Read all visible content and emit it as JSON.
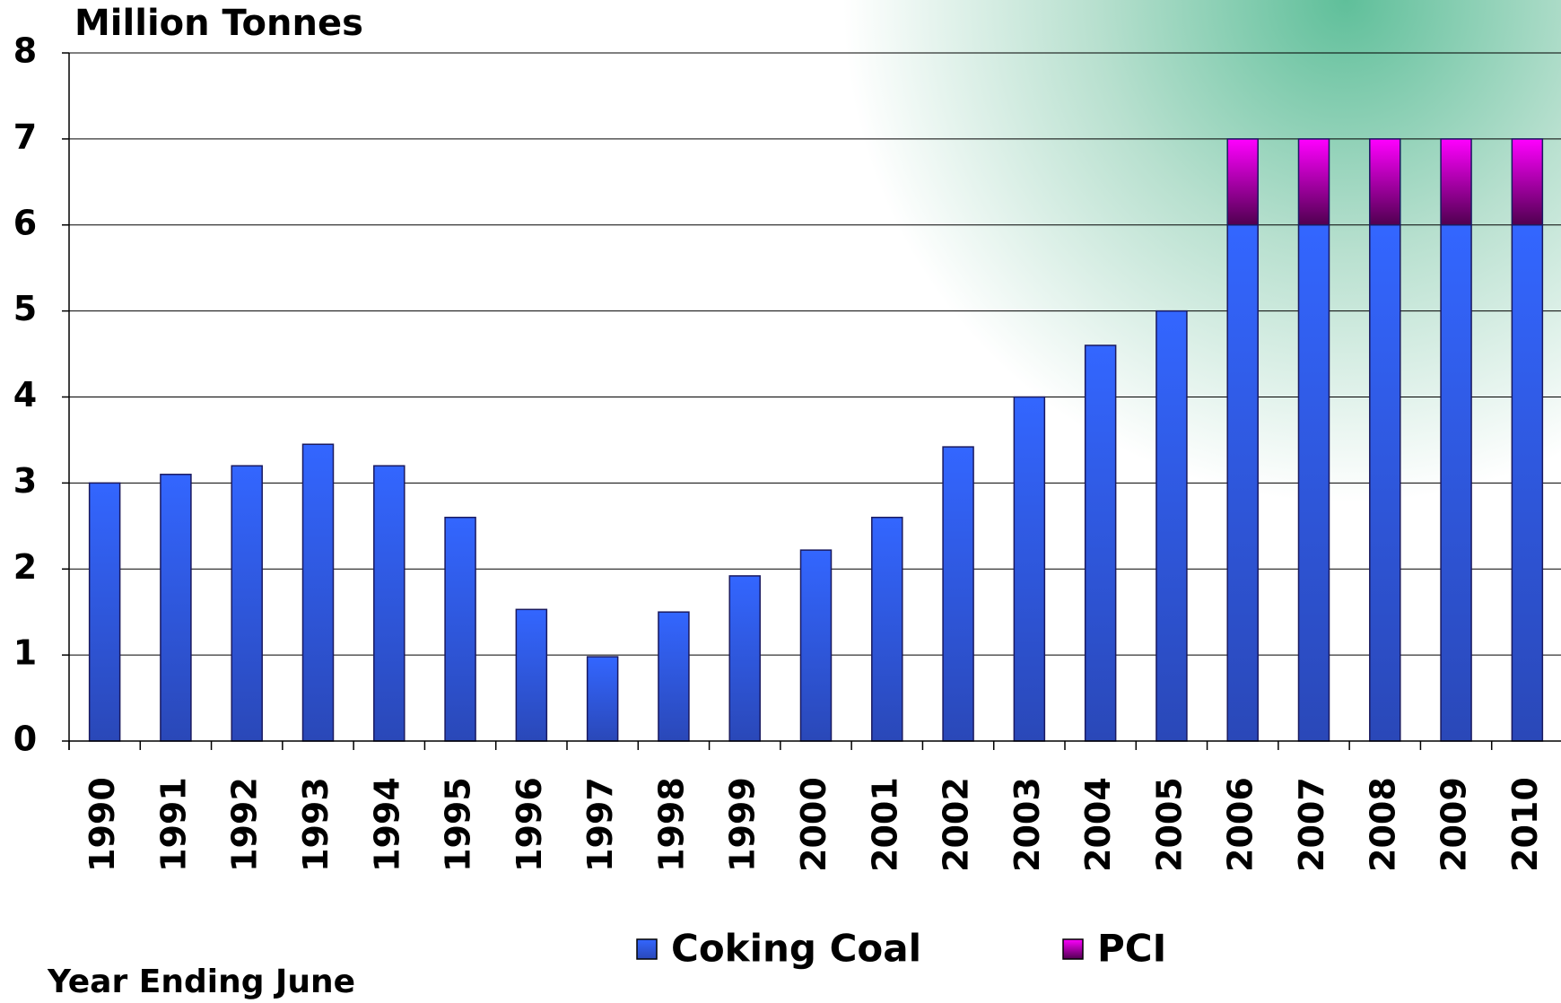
{
  "chart_data": {
    "type": "bar",
    "stacked": true,
    "title": "Million Tonnes",
    "x_label": "Year Ending June",
    "categories": [
      "1990",
      "1991",
      "1992",
      "1993",
      "1994",
      "1995",
      "1996",
      "1997",
      "1998",
      "1999",
      "2000",
      "2001",
      "2002",
      "2003",
      "2004",
      "2005",
      "2006",
      "2007",
      "2008",
      "2009",
      "2010"
    ],
    "series": [
      {
        "name": "Coking Coal",
        "color": "#3366ff",
        "values": [
          3.0,
          3.1,
          3.2,
          3.45,
          3.2,
          2.6,
          1.53,
          0.98,
          1.5,
          1.92,
          2.22,
          2.6,
          3.42,
          4.0,
          4.6,
          5.0,
          6,
          6,
          6,
          6,
          6
        ]
      },
      {
        "name": "PCI",
        "color": "#ff00ff",
        "values": [
          0,
          0,
          0,
          0,
          0,
          0,
          0,
          0,
          0,
          0,
          0,
          0,
          0,
          0,
          0,
          0,
          1,
          1,
          1,
          1,
          1
        ]
      }
    ],
    "ylim": [
      0,
      8
    ],
    "yticks": [
      0,
      1,
      2,
      3,
      4,
      5,
      6,
      7,
      8
    ],
    "grid": true
  }
}
